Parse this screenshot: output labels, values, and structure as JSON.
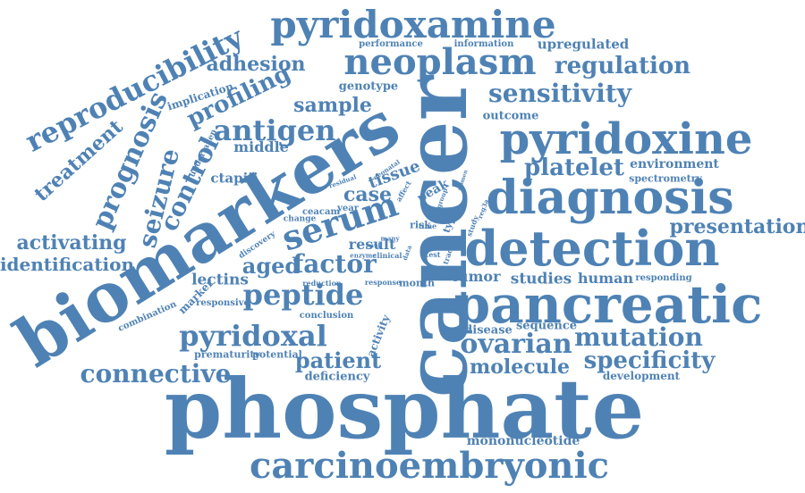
{
  "word_cloud": {
    "color": "#4f82b4",
    "words": [
      "phosphate",
      "cancer",
      "biomarkers",
      "pancreatic",
      "diagnosis",
      "detection",
      "pyridoxamine",
      "pyridoxine",
      "carcinoembryonic",
      "neoplasm",
      "serum",
      "reproducibility",
      "pyridoxal",
      "antigen",
      "peptide",
      "ovarian",
      "mutation",
      "specificity",
      "regulation",
      "sensitivity",
      "connective",
      "seizure",
      "prognosis",
      "control",
      "treatment",
      "factor",
      "profiling",
      "platelet",
      "presentation",
      "activating",
      "identification",
      "adhesion",
      "patient",
      "molecule",
      "aged",
      "sample",
      "case",
      "tissue",
      "lectins",
      "studies",
      "human",
      "middle",
      "upregulated",
      "environment",
      "outcome",
      "genotype",
      "implication",
      "ctapiii",
      "result",
      "tumor",
      "disease",
      "sequence",
      "development",
      "mononucleotide",
      "deficiency",
      "potential",
      "prematurity",
      "responsive",
      "conclusion",
      "marker",
      "combination",
      "spectrometry",
      "performance",
      "information",
      "undertaken",
      "activity",
      "reduction",
      "response",
      "month",
      "responding",
      "discovery",
      "change",
      "ceacam",
      "year",
      "risk",
      "peak",
      "type",
      "cell",
      "clinical",
      "enzyme",
      "level",
      "time",
      "study",
      "tracy",
      "many",
      "group",
      "reg3a",
      "neonatal",
      "residual",
      "affect",
      "test",
      "data",
      "women"
    ]
  }
}
